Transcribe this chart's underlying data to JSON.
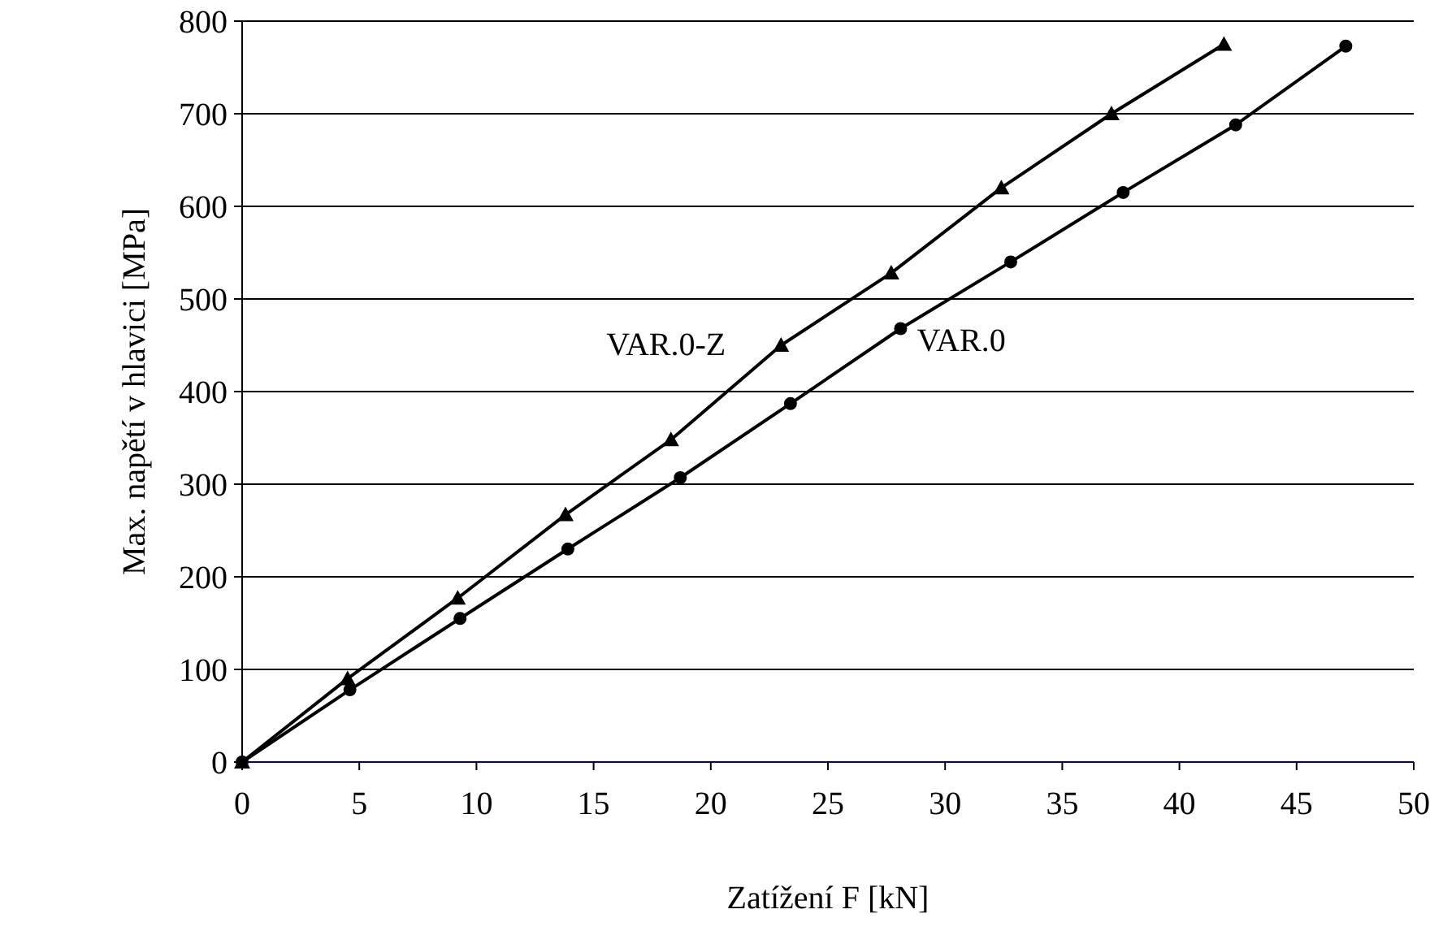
{
  "chart_data": {
    "type": "line",
    "xlabel": "Zatížení F [kN]",
    "ylabel": "Max. napětí v hlavici [MPa]",
    "xlim": [
      0,
      50
    ],
    "xticks": [
      0,
      5,
      10,
      15,
      20,
      25,
      30,
      35,
      40,
      45,
      50
    ],
    "ylim": [
      0,
      800
    ],
    "yticks": [
      0,
      100,
      200,
      300,
      400,
      500,
      600,
      700,
      800
    ],
    "grid": "y",
    "series": [
      {
        "name": "VAR.0",
        "color": "#000000",
        "marker": "circle",
        "x": [
          0,
          4.6,
          9.3,
          13.9,
          18.7,
          23.4,
          28.1,
          32.8,
          37.6,
          42.4,
          47.1
        ],
        "values": [
          0,
          78,
          155,
          230,
          307,
          387,
          468,
          540,
          615,
          688,
          773
        ]
      },
      {
        "name": "VAR.0-Z",
        "color": "#000000",
        "marker": "triangle",
        "x": [
          0,
          4.5,
          9.2,
          13.8,
          18.3,
          23.0,
          27.7,
          32.4,
          37.1,
          41.9
        ],
        "values": [
          0,
          90,
          177,
          267,
          348,
          450,
          528,
          620,
          700,
          775
        ]
      }
    ]
  }
}
